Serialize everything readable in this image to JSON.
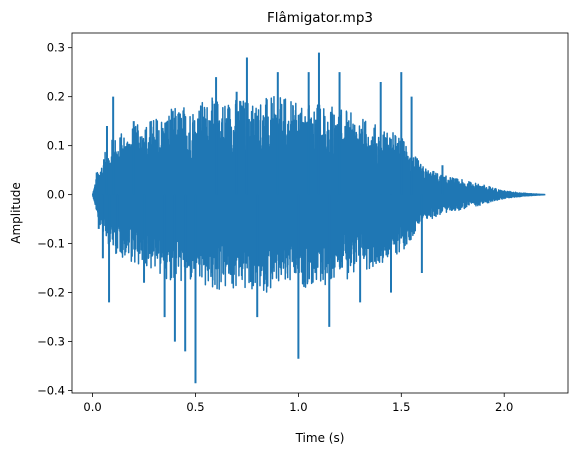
{
  "chart_data": {
    "type": "line",
    "title": "Flâmigator.mp3",
    "xlabel": "Time (s)",
    "ylabel": "Amplitude",
    "xlim": [
      -0.1,
      2.31
    ],
    "ylim": [
      -0.405,
      0.33
    ],
    "xticks": [
      0.0,
      0.5,
      1.0,
      1.5,
      2.0
    ],
    "xtick_labels": [
      "0.0",
      "0.5",
      "1.0",
      "1.5",
      "2.0"
    ],
    "yticks": [
      -0.4,
      -0.3,
      -0.2,
      -0.1,
      0.0,
      0.1,
      0.2,
      0.3
    ],
    "ytick_labels": [
      "−0.4",
      "−0.3",
      "−0.2",
      "−0.1",
      "0.0",
      "0.1",
      "0.2",
      "0.3"
    ],
    "grid": false,
    "series": [
      {
        "color": "#1f77b4",
        "duration": 2.2,
        "envelope": [
          [
            0.0,
            0.0
          ],
          [
            0.03,
            0.06
          ],
          [
            0.1,
            0.12
          ],
          [
            0.2,
            0.14
          ],
          [
            0.3,
            0.16
          ],
          [
            0.4,
            0.18
          ],
          [
            0.5,
            0.19
          ],
          [
            0.6,
            0.2
          ],
          [
            0.7,
            0.2
          ],
          [
            0.8,
            0.2
          ],
          [
            0.9,
            0.2
          ],
          [
            1.0,
            0.19
          ],
          [
            1.1,
            0.19
          ],
          [
            1.2,
            0.18
          ],
          [
            1.3,
            0.16
          ],
          [
            1.4,
            0.14
          ],
          [
            1.5,
            0.12
          ],
          [
            1.55,
            0.09
          ],
          [
            1.6,
            0.06
          ],
          [
            1.7,
            0.04
          ],
          [
            1.8,
            0.03
          ],
          [
            1.9,
            0.02
          ],
          [
            2.0,
            0.008
          ],
          [
            2.1,
            0.003
          ],
          [
            2.2,
            0.0
          ]
        ],
        "peaks": [
          [
            0.02,
            0.045
          ],
          [
            0.03,
            -0.07
          ],
          [
            0.05,
            -0.13
          ],
          [
            0.07,
            0.14
          ],
          [
            0.08,
            -0.22
          ],
          [
            0.1,
            0.2
          ],
          [
            0.12,
            -0.11
          ],
          [
            0.2,
            0.15
          ],
          [
            0.25,
            -0.18
          ],
          [
            0.35,
            -0.25
          ],
          [
            0.4,
            -0.3
          ],
          [
            0.45,
            -0.32
          ],
          [
            0.5,
            -0.385
          ],
          [
            0.6,
            0.24
          ],
          [
            0.7,
            0.21
          ],
          [
            0.75,
            0.28
          ],
          [
            0.8,
            -0.25
          ],
          [
            0.9,
            0.25
          ],
          [
            1.0,
            -0.335
          ],
          [
            1.05,
            0.25
          ],
          [
            1.1,
            0.29
          ],
          [
            1.15,
            -0.27
          ],
          [
            1.2,
            0.25
          ],
          [
            1.3,
            -0.22
          ],
          [
            1.4,
            0.23
          ],
          [
            1.45,
            -0.2
          ],
          [
            1.5,
            0.25
          ],
          [
            1.55,
            0.2
          ],
          [
            1.6,
            -0.16
          ],
          [
            1.7,
            0.06
          ]
        ]
      }
    ]
  }
}
